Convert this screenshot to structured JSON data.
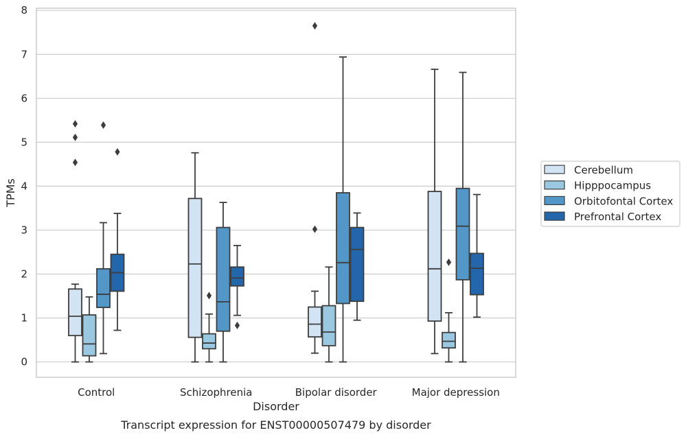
{
  "chart_data": {
    "type": "box",
    "title": "",
    "xlabel": "Disorder",
    "ylabel": "TPMs",
    "caption": "Transcript expression for ENST00000507479 by disorder",
    "categories": [
      "Control",
      "Schizophrenia",
      "Bipolar disorder",
      "Major depression"
    ],
    "ylim": [
      -0.35,
      8.05
    ],
    "yticks": [
      0,
      1,
      2,
      3,
      4,
      5,
      6,
      7,
      8
    ],
    "grid": true,
    "legend_position": "right",
    "series": [
      {
        "name": "Cerebellum",
        "color": "#d2e3f3",
        "boxes": [
          {
            "whislo": 0.0,
            "q1": 0.6,
            "med": 1.04,
            "q3": 1.66,
            "whishi": 1.77,
            "fliers": []
          },
          {
            "whislo": 0.0,
            "q1": 0.56,
            "med": 2.23,
            "q3": 3.72,
            "whishi": 4.76,
            "fliers": []
          },
          {
            "whislo": 0.2,
            "q1": 0.57,
            "med": 0.86,
            "q3": 1.25,
            "whishi": 1.61,
            "fliers": [
              3.02,
              7.65
            ]
          },
          {
            "whislo": 0.19,
            "q1": 0.93,
            "med": 2.12,
            "q3": 3.88,
            "whishi": 6.66,
            "fliers": []
          }
        ]
      },
      {
        "name": "Hipppocampus",
        "color": "#9ac8e0",
        "boxes": [
          {
            "whislo": 0.0,
            "q1": 0.14,
            "med": 0.41,
            "q3": 1.07,
            "whishi": 1.48,
            "fliers": []
          },
          {
            "whislo": 0.0,
            "q1": 0.3,
            "med": 0.43,
            "q3": 0.64,
            "whishi": 1.09,
            "fliers": [
              1.51
            ]
          },
          {
            "whislo": 0.0,
            "q1": 0.37,
            "med": 0.68,
            "q3": 1.28,
            "whishi": 2.16,
            "fliers": []
          },
          {
            "whislo": 0.0,
            "q1": 0.32,
            "med": 0.47,
            "q3": 0.67,
            "whishi": 1.12,
            "fliers": [
              2.27
            ]
          }
        ]
      },
      {
        "name": "Orbitofontal Cortex",
        "color": "#5297c7",
        "boxes": [
          {
            "whislo": 0.19,
            "q1": 1.24,
            "med": 1.54,
            "q3": 2.12,
            "whishi": 3.17,
            "fliers": [
              5.39
            ]
          },
          {
            "whislo": 0.0,
            "q1": 0.7,
            "med": 1.37,
            "q3": 3.06,
            "whishi": 3.63,
            "fliers": []
          },
          {
            "whislo": 0.0,
            "q1": 1.33,
            "med": 2.26,
            "q3": 3.85,
            "whishi": 6.94,
            "fliers": []
          },
          {
            "whislo": 0.0,
            "q1": 1.87,
            "med": 3.09,
            "q3": 3.95,
            "whishi": 6.59,
            "fliers": []
          }
        ]
      },
      {
        "name": "Prefrontal Cortex",
        "color": "#2466ab",
        "boxes": [
          {
            "whislo": 0.72,
            "q1": 1.61,
            "med": 2.03,
            "q3": 2.45,
            "whishi": 3.38,
            "fliers": [
              4.78
            ]
          },
          {
            "whislo": 1.06,
            "q1": 1.73,
            "med": 1.91,
            "q3": 2.16,
            "whishi": 2.65,
            "fliers": [
              0.83
            ]
          },
          {
            "whislo": 0.95,
            "q1": 1.38,
            "med": 2.56,
            "q3": 3.06,
            "whishi": 3.39,
            "fliers": []
          },
          {
            "whislo": 1.02,
            "q1": 1.53,
            "med": 2.13,
            "q3": 2.47,
            "whishi": 3.81,
            "fliers": []
          }
        ]
      }
    ],
    "extra_fliers": [
      {
        "series": 0,
        "category": 0,
        "values": [
          4.54,
          5.11,
          5.42
        ]
      }
    ]
  }
}
